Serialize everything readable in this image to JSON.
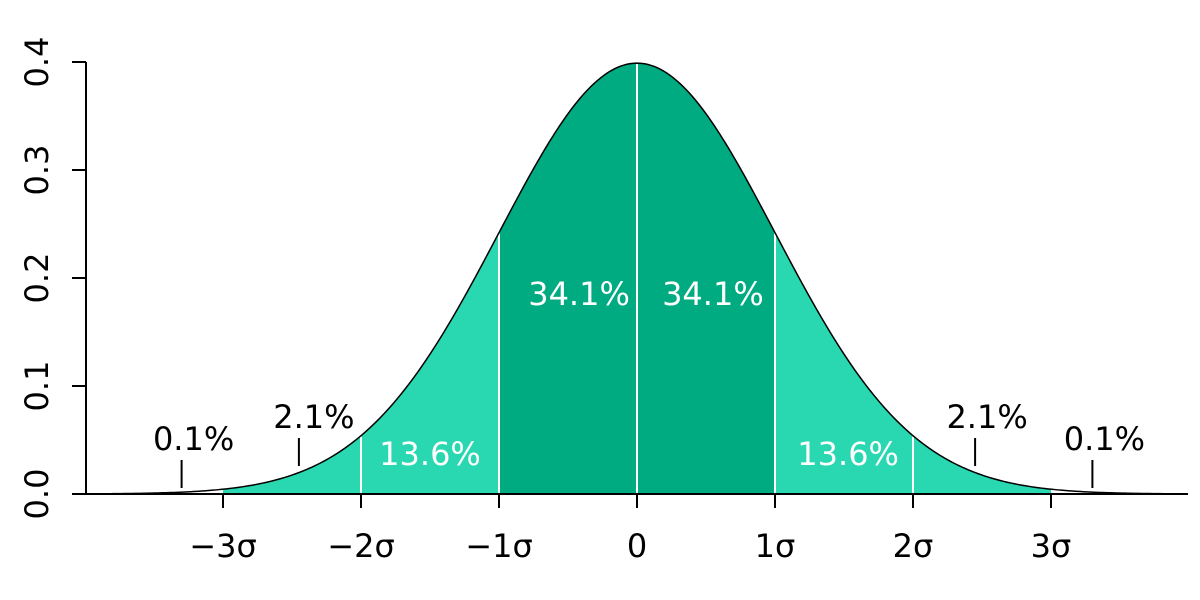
{
  "chart_data": {
    "type": "area",
    "title": "",
    "xlabel": "",
    "ylabel": "",
    "distribution": "standard normal",
    "xlim": [
      -4,
      4
    ],
    "ylim": [
      0,
      0.4
    ],
    "y_ticks": [
      {
        "value": 0.0,
        "label": "0.0"
      },
      {
        "value": 0.1,
        "label": "0.1"
      },
      {
        "value": 0.2,
        "label": "0.2"
      },
      {
        "value": 0.3,
        "label": "0.3"
      },
      {
        "value": 0.4,
        "label": "0.4"
      }
    ],
    "x_ticks": [
      {
        "value": -3,
        "label": "−3σ"
      },
      {
        "value": -2,
        "label": "−2σ"
      },
      {
        "value": -1,
        "label": "−1σ"
      },
      {
        "value": 0,
        "label": "0"
      },
      {
        "value": 1,
        "label": "1σ"
      },
      {
        "value": 2,
        "label": "2σ"
      },
      {
        "value": 3,
        "label": "3σ"
      }
    ],
    "regions": [
      {
        "from": -4,
        "to": -3,
        "percent": "0.1%",
        "color": "#ffffff",
        "label_color": "#000000",
        "pointer_x": -3.3,
        "label_inside": false
      },
      {
        "from": -3,
        "to": -2,
        "percent": "2.1%",
        "color": "#29d8b1",
        "label_color": "#000000",
        "pointer_x": -2.45,
        "label_inside": false
      },
      {
        "from": -2,
        "to": -1,
        "percent": "13.6%",
        "color": "#29d8b1",
        "label_color": "#ffffff",
        "label_x": -1.5,
        "label_y": 0.037,
        "label_inside": true
      },
      {
        "from": -1,
        "to": 0,
        "percent": "34.1%",
        "color": "#00ab82",
        "label_color": "#ffffff",
        "label_x": -0.42,
        "label_y": 0.185,
        "label_inside": true
      },
      {
        "from": 0,
        "to": 1,
        "percent": "34.1%",
        "color": "#00ab82",
        "label_color": "#ffffff",
        "label_x": 0.55,
        "label_y": 0.185,
        "label_inside": true
      },
      {
        "from": 1,
        "to": 2,
        "percent": "13.6%",
        "color": "#29d8b1",
        "label_color": "#ffffff",
        "label_x": 1.53,
        "label_y": 0.037,
        "label_inside": true
      },
      {
        "from": 2,
        "to": 3,
        "percent": "2.1%",
        "color": "#29d8b1",
        "label_color": "#000000",
        "pointer_x": 2.45,
        "label_inside": false
      },
      {
        "from": 3,
        "to": 4,
        "percent": "0.1%",
        "color": "#ffffff",
        "label_color": "#000000",
        "pointer_x": 3.3,
        "label_inside": false
      }
    ],
    "colors": {
      "inner": "#00ab82",
      "outer": "#29d8b1",
      "divider": "#ffffff",
      "curve": "#000000"
    }
  }
}
